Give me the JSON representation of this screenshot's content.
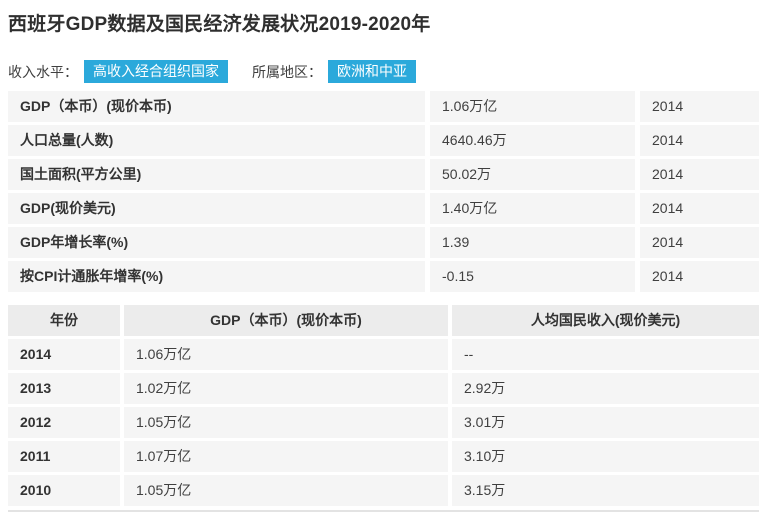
{
  "page": {
    "title": "西班牙GDP数据及国民经济发展状况2019-2020年"
  },
  "meta": {
    "income_label": "收入水平：",
    "income_value": "高收入经合组织国家",
    "region_label": "所属地区：",
    "region_value": "欧洲和中亚",
    "badge_color": "#2BA9DB"
  },
  "indicators": {
    "rows": [
      {
        "label": "GDP（本币）(现价本币)",
        "value": "1.06万亿",
        "year": "2014"
      },
      {
        "label": "人口总量(人数)",
        "value": "4640.46万",
        "year": "2014"
      },
      {
        "label": "国土面积(平方公里)",
        "value": "50.02万",
        "year": "2014"
      },
      {
        "label": "GDP(现价美元)",
        "value": "1.40万亿",
        "year": "2014"
      },
      {
        "label": "GDP年增长率(%)",
        "value": "1.39",
        "year": "2014"
      },
      {
        "label": "按CPI计通胀年增率(%)",
        "value": "-0.15",
        "year": "2014"
      }
    ]
  },
  "history": {
    "headers": {
      "year": "年份",
      "gdp": "GDP（本币）(现价本币)",
      "income": "人均国民收入(现价美元)"
    },
    "rows": [
      {
        "year": "2014",
        "gdp": "1.06万亿",
        "income": "--"
      },
      {
        "year": "2013",
        "gdp": "1.02万亿",
        "income": "2.92万"
      },
      {
        "year": "2012",
        "gdp": "1.05万亿",
        "income": "3.01万"
      },
      {
        "year": "2011",
        "gdp": "1.07万亿",
        "income": "3.10万"
      },
      {
        "year": "2010",
        "gdp": "1.05万亿",
        "income": "3.15万"
      }
    ]
  }
}
